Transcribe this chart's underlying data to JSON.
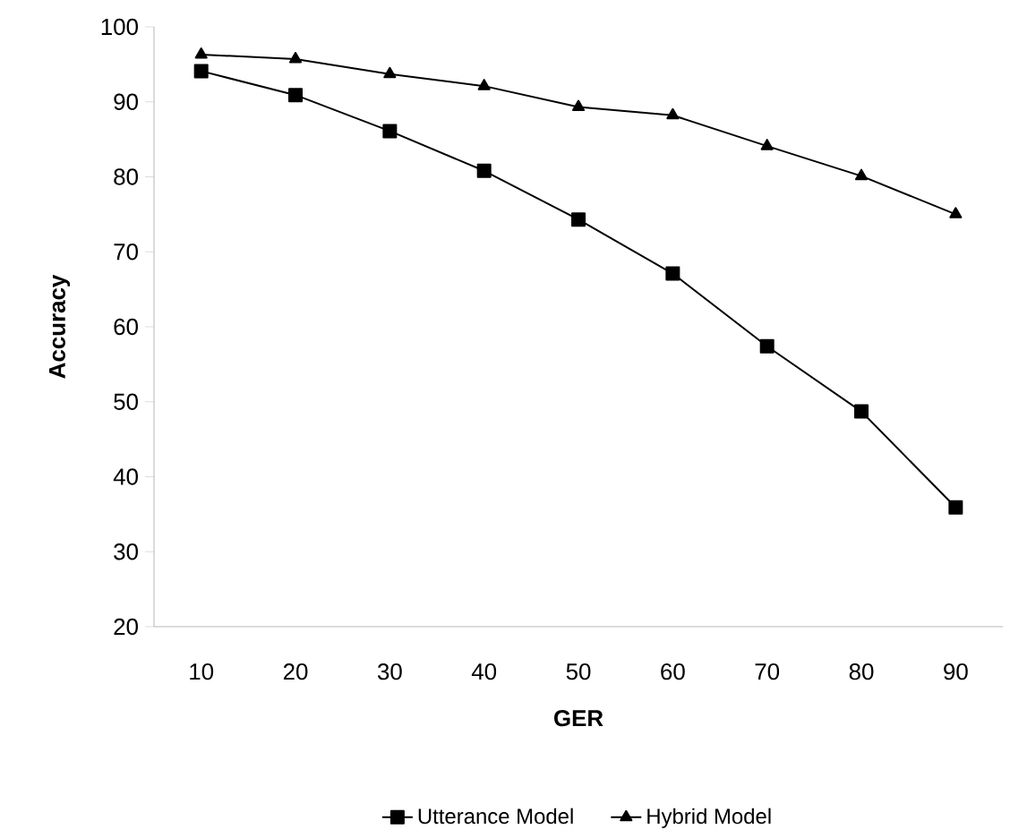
{
  "chart_data": {
    "type": "line",
    "xlabel": "GER",
    "ylabel": "Accuracy",
    "categories": [
      "10",
      "20",
      "30",
      "40",
      "50",
      "60",
      "70",
      "80",
      "90"
    ],
    "series": [
      {
        "name": "Utterance Model",
        "color": "#000000",
        "marker": "square",
        "values": [
          94.1,
          90.9,
          86.1,
          80.8,
          74.3,
          67.1,
          57.4,
          48.7,
          35.9
        ]
      },
      {
        "name": "Hybrid Model",
        "color": "#000000",
        "marker": "triangle",
        "values": [
          96.3,
          95.7,
          93.7,
          92.1,
          89.3,
          88.2,
          84.1,
          80.1,
          75.0
        ]
      }
    ],
    "ylim": [
      20,
      100
    ],
    "yticks": [
      20,
      30,
      40,
      50,
      60,
      70,
      80,
      90,
      100
    ],
    "grid": false,
    "legend": "bottom",
    "line_style": "solid"
  }
}
